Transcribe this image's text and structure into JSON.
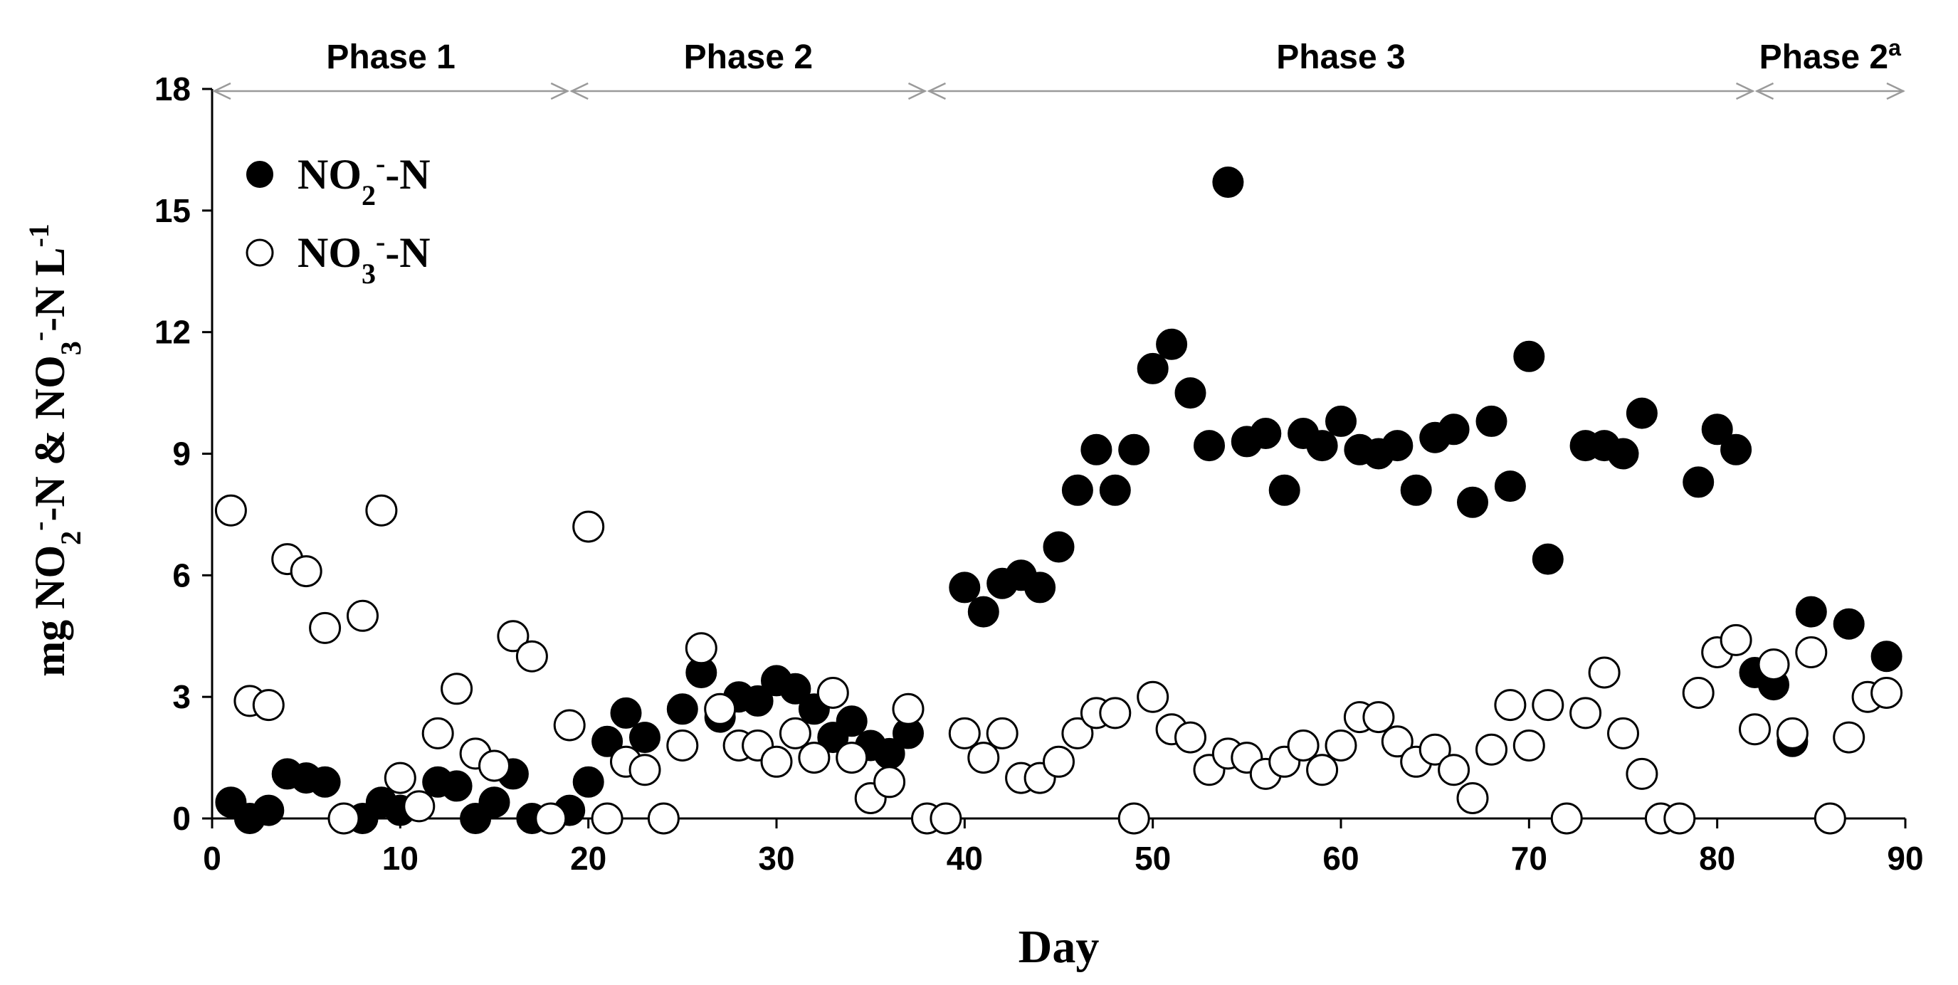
{
  "chart_data": {
    "type": "scatter",
    "xlabel": "Day",
    "ylabel": {
      "parts": [
        "mg NO",
        "2",
        "-",
        "-N & NO",
        "3",
        "-",
        "-N L",
        "-1"
      ]
    },
    "xlim": [
      0,
      90
    ],
    "ylim": [
      0,
      18
    ],
    "xticks": [
      0,
      10,
      20,
      30,
      40,
      50,
      60,
      70,
      80,
      90
    ],
    "yticks": [
      0,
      3,
      6,
      9,
      12,
      15,
      18
    ],
    "grid": false,
    "legend_position": "top-left",
    "phases": [
      {
        "label": "Phase 1",
        "sup": "",
        "start": 0,
        "end": 19
      },
      {
        "label": "Phase 2",
        "sup": "",
        "start": 19,
        "end": 38
      },
      {
        "label": "Phase 3",
        "sup": "",
        "start": 38,
        "end": 82
      },
      {
        "label": "Phase 2",
        "sup": "a",
        "start": 82,
        "end": 90
      }
    ],
    "series": [
      {
        "name": "NO2- -N",
        "legend_parts": [
          "NO",
          "2",
          "-",
          "-N"
        ],
        "marker": "filled",
        "color": "#000000",
        "x": [
          1,
          2,
          3,
          4,
          5,
          6,
          8,
          9,
          10,
          12,
          13,
          14,
          15,
          16,
          17,
          19,
          20,
          21,
          22,
          23,
          25,
          26,
          27,
          28,
          29,
          30,
          31,
          32,
          33,
          34,
          35,
          36,
          37,
          40,
          41,
          42,
          43,
          44,
          45,
          46,
          47,
          48,
          49,
          50,
          51,
          52,
          53,
          54,
          55,
          56,
          57,
          58,
          59,
          60,
          61,
          62,
          63,
          64,
          65,
          66,
          67,
          68,
          69,
          70,
          71,
          73,
          74,
          75,
          76,
          79,
          80,
          81,
          82,
          83,
          84,
          85,
          87,
          89
        ],
        "y": [
          0.4,
          0.0,
          0.2,
          1.1,
          1.0,
          0.9,
          0.0,
          0.4,
          0.2,
          0.9,
          0.8,
          0.0,
          0.4,
          1.1,
          0.0,
          0.2,
          0.9,
          1.9,
          2.6,
          2.0,
          2.7,
          3.6,
          2.5,
          3.0,
          2.9,
          3.4,
          3.2,
          2.7,
          2.0,
          2.4,
          1.8,
          1.6,
          2.1,
          5.7,
          5.1,
          5.8,
          6.0,
          5.7,
          6.7,
          8.1,
          9.1,
          8.1,
          9.1,
          11.1,
          11.7,
          10.5,
          9.2,
          15.7,
          9.3,
          9.5,
          8.1,
          9.5,
          9.2,
          9.8,
          9.1,
          9.0,
          9.2,
          8.1,
          9.4,
          9.6,
          7.8,
          9.8,
          8.2,
          11.4,
          6.4,
          9.2,
          9.2,
          9.0,
          10.0,
          8.3,
          9.6,
          9.1,
          3.6,
          3.3,
          1.9,
          5.1,
          4.8,
          4.0
        ]
      },
      {
        "name": "NO3- -N",
        "legend_parts": [
          "NO",
          "3",
          "-",
          "-N"
        ],
        "marker": "open",
        "color": "#000000",
        "x": [
          1,
          2,
          3,
          4,
          5,
          6,
          7,
          8,
          9,
          10,
          11,
          12,
          13,
          14,
          15,
          16,
          17,
          18,
          19,
          20,
          21,
          22,
          23,
          24,
          25,
          26,
          27,
          28,
          29,
          30,
          31,
          32,
          33,
          34,
          35,
          36,
          37,
          38,
          39,
          40,
          41,
          42,
          43,
          44,
          45,
          46,
          47,
          48,
          49,
          50,
          51,
          52,
          53,
          54,
          55,
          56,
          57,
          58,
          59,
          60,
          61,
          62,
          63,
          64,
          65,
          66,
          67,
          68,
          69,
          70,
          71,
          72,
          73,
          74,
          75,
          76,
          77,
          78,
          79,
          80,
          81,
          82,
          83,
          84,
          85,
          86,
          87,
          88,
          89
        ],
        "y": [
          7.6,
          2.9,
          2.8,
          6.4,
          6.1,
          4.7,
          0.0,
          5.0,
          7.6,
          1.0,
          0.3,
          2.1,
          3.2,
          1.6,
          1.3,
          4.5,
          4.0,
          0.0,
          2.3,
          7.2,
          0.0,
          1.4,
          1.2,
          0.0,
          1.8,
          4.2,
          2.7,
          1.8,
          1.8,
          1.4,
          2.1,
          1.5,
          3.1,
          1.5,
          0.5,
          0.9,
          2.7,
          0.0,
          0.0,
          2.1,
          1.5,
          2.1,
          1.0,
          1.0,
          1.4,
          2.1,
          2.6,
          2.6,
          0.0,
          3.0,
          2.2,
          2.0,
          1.2,
          1.6,
          1.5,
          1.1,
          1.4,
          1.8,
          1.2,
          1.8,
          2.5,
          2.5,
          1.9,
          1.4,
          1.7,
          1.2,
          0.5,
          1.7,
          2.8,
          1.8,
          2.8,
          0.0,
          2.6,
          3.6,
          2.1,
          1.1,
          0.0,
          0.0,
          3.1,
          4.1,
          4.4,
          2.2,
          3.8,
          2.1,
          4.1,
          0.0,
          2.0,
          3.0,
          3.1
        ]
      }
    ]
  }
}
